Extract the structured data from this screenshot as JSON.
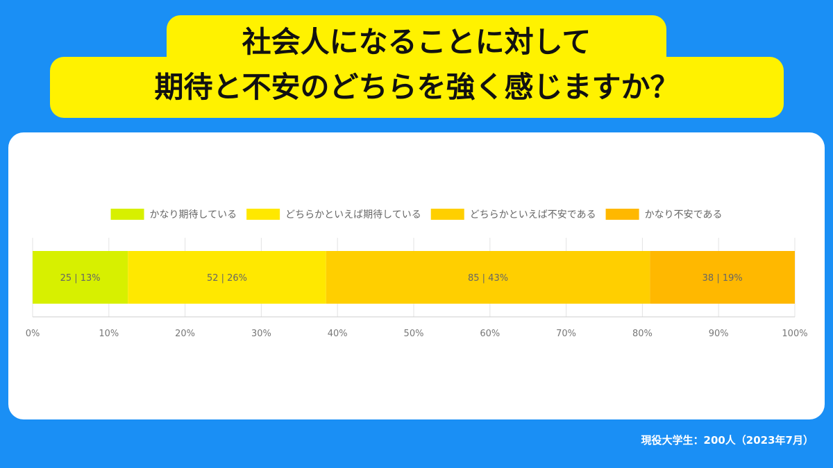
{
  "title": {
    "line1": "社会人になることに対して",
    "line2": "期待と不安のどちらを強く感じますか？"
  },
  "footnote": "現役大学生：200人（2023年7月）",
  "chart_data": {
    "type": "bar",
    "orientation": "horizontal",
    "stacked": true,
    "legend_position": "top",
    "grid": true,
    "xlim": [
      0,
      100
    ],
    "ticks": [
      "0%",
      "10%",
      "20%",
      "30%",
      "40%",
      "50%",
      "60%",
      "70%",
      "80%",
      "90%",
      "100%"
    ],
    "series": [
      {
        "name": "かなり期待している",
        "count": 25,
        "percent": 12.5,
        "label": "25 | 13%",
        "color": "#d7f000"
      },
      {
        "name": "どちらかといえば期待している",
        "count": 52,
        "percent": 26,
        "label": "52 | 26%",
        "color": "#ffe800"
      },
      {
        "name": "どちらかといえば不安である",
        "count": 85,
        "percent": 42.5,
        "label": "85 | 43%",
        "color": "#ffcf00"
      },
      {
        "name": "かなり不安である",
        "count": 38,
        "percent": 19,
        "label": "38 | 19%",
        "color": "#ffb800"
      }
    ]
  }
}
